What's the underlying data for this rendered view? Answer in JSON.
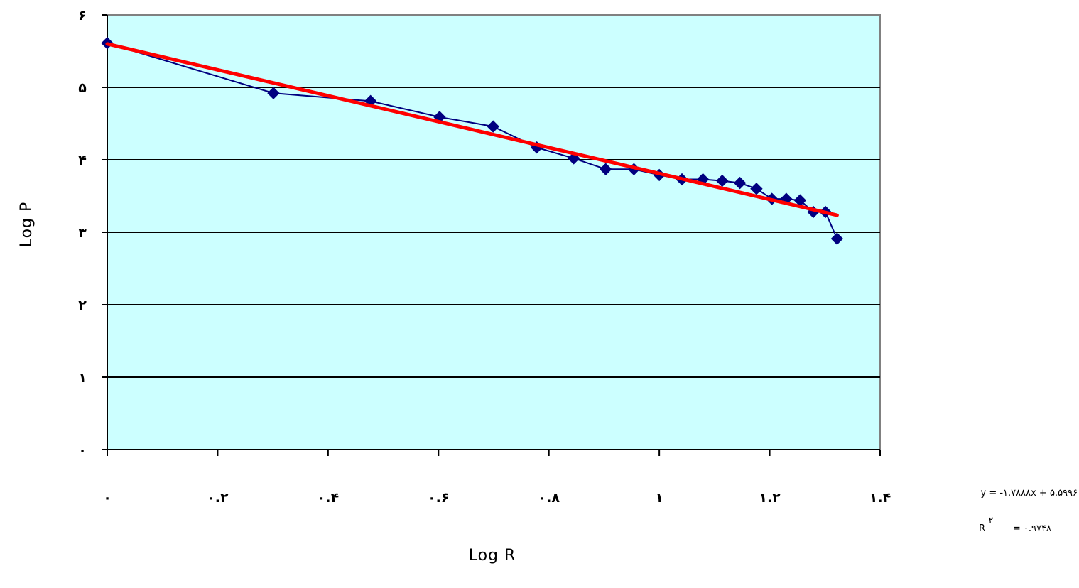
{
  "chart_data": {
    "type": "scatter",
    "xlabel": "Log R",
    "ylabel": "Log P",
    "xlim": [
      0,
      1.4
    ],
    "ylim": [
      0,
      6
    ],
    "x_ticks": [
      0,
      0.2,
      0.4,
      0.6,
      0.8,
      1.0,
      1.2,
      1.4
    ],
    "y_ticks": [
      0,
      1,
      2,
      3,
      4,
      5,
      6
    ],
    "x_tick_labels": [
      "۰",
      "۰.۲",
      "۰.۴",
      "۰.۶",
      "۰.۸",
      "۱",
      "۱.۲",
      "۱.۴"
    ],
    "y_tick_labels": [
      "۰",
      "۱",
      "۲",
      "۳",
      "۴",
      "۵",
      "۶"
    ],
    "grid": "horizontal",
    "series": [
      {
        "values_x": [
          0.0,
          0.301,
          0.477,
          0.602,
          0.699,
          0.778,
          0.845,
          0.903,
          0.954,
          1.0,
          1.041,
          1.079,
          1.114,
          1.146,
          1.176,
          1.204,
          1.23,
          1.255,
          1.279,
          1.301,
          1.322
        ],
        "values_y": [
          5.61,
          4.92,
          4.81,
          4.59,
          4.46,
          4.17,
          4.02,
          3.87,
          3.87,
          3.79,
          3.73,
          3.73,
          3.71,
          3.68,
          3.6,
          3.46,
          3.46,
          3.44,
          3.28,
          3.28,
          2.91
        ],
        "marker": "diamond",
        "color": "#000080"
      }
    ],
    "trendline": {
      "slope": -1.7888,
      "intercept": 5.5996,
      "x_range": [
        0,
        1.322
      ],
      "color": "#ff0000"
    },
    "equation_text": "y = -۱.۷۸۸۸x + ۵.۵۹۹۶",
    "r2_label": "R",
    "r2_superscript": "۲",
    "r2_value_text": "= ۰.۹۷۴۸",
    "colors": {
      "plot_background": "#ccffff",
      "plot_border": "#808080",
      "gridline": "#000000",
      "series": "#000080",
      "trendline": "#ff0000"
    }
  }
}
